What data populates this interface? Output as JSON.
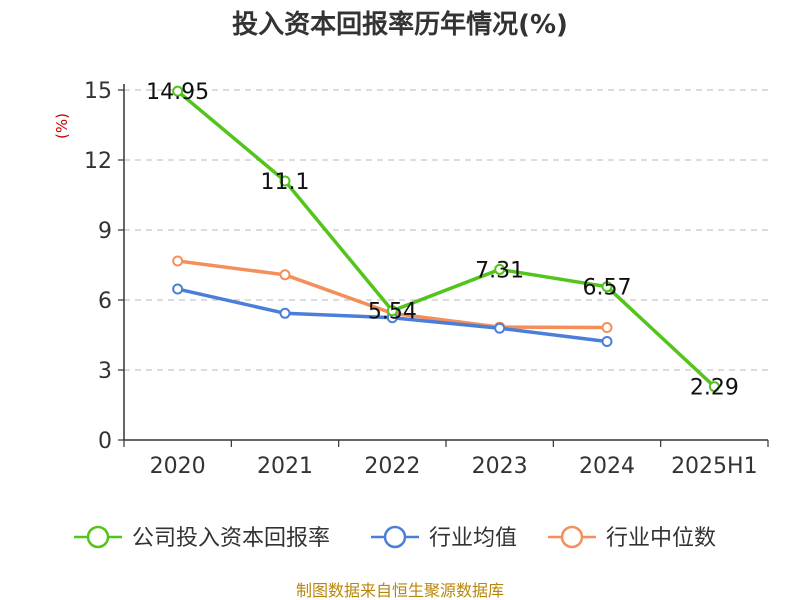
{
  "chart_data": {
    "type": "line",
    "title": "投入资本回报率历年情况(%)",
    "ylabel": "(%)",
    "categories": [
      "2020",
      "2021",
      "2022",
      "2023",
      "2024",
      "2025H1"
    ],
    "yticks": [
      "0",
      "3",
      "6",
      "9",
      "12",
      "15"
    ],
    "ylim": [
      0,
      15
    ],
    "grid": "horizontal-dashed",
    "legend_position": "bottom",
    "series": [
      {
        "name": "公司投入资本回报率",
        "color": "#52c41a",
        "values": [
          14.95,
          11.1,
          5.54,
          7.31,
          6.57,
          2.29
        ],
        "labels": [
          "14.95",
          "11.1",
          "5.54",
          "7.31",
          "6.57",
          "2.29"
        ]
      },
      {
        "name": "行业均值",
        "color": "#4a7fd9",
        "values": [
          6.47,
          5.43,
          5.24,
          4.79,
          4.22,
          null
        ]
      },
      {
        "name": "行业中位数",
        "color": "#f58f5a",
        "values": [
          7.67,
          7.08,
          5.43,
          4.84,
          4.82,
          null
        ]
      }
    ]
  },
  "footer": {
    "source": "制图数据来自恒生聚源数据库"
  }
}
